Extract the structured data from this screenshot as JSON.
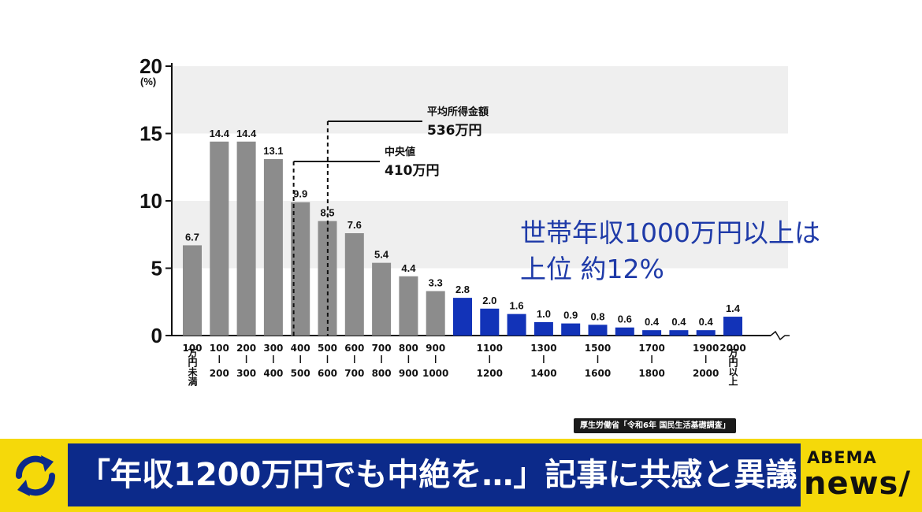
{
  "chart_data": {
    "type": "bar",
    "unit_label": "(%)",
    "yticks": [
      0,
      5,
      10,
      15,
      20
    ],
    "ylim": [
      0,
      20
    ],
    "categories": [
      {
        "top": "100",
        "bottom": "万円未満"
      },
      {
        "top": "100",
        "bottom": "200"
      },
      {
        "top": "200",
        "bottom": "300"
      },
      {
        "top": "300",
        "bottom": "400"
      },
      {
        "top": "400",
        "bottom": "500"
      },
      {
        "top": "500",
        "bottom": "600"
      },
      {
        "top": "600",
        "bottom": "700"
      },
      {
        "top": "700",
        "bottom": "800"
      },
      {
        "top": "800",
        "bottom": "900"
      },
      {
        "top": "900",
        "bottom": "1000"
      },
      {
        "top": "",
        "bottom": ""
      },
      {
        "top": "1100",
        "bottom": "1200"
      },
      {
        "top": "",
        "bottom": ""
      },
      {
        "top": "1300",
        "bottom": "1400"
      },
      {
        "top": "",
        "bottom": ""
      },
      {
        "top": "1500",
        "bottom": "1600"
      },
      {
        "top": "",
        "bottom": ""
      },
      {
        "top": "1700",
        "bottom": "1800"
      },
      {
        "top": "",
        "bottom": ""
      },
      {
        "top": "1900",
        "bottom": "2000"
      },
      {
        "top": "2000",
        "bottom": "万円以上"
      }
    ],
    "values": [
      6.7,
      14.4,
      14.4,
      13.1,
      9.9,
      8.5,
      7.6,
      5.4,
      4.4,
      3.3,
      2.8,
      2.0,
      1.6,
      1.0,
      0.9,
      0.8,
      0.6,
      0.4,
      0.4,
      0.4,
      1.4
    ],
    "value_labels": [
      "6.7",
      "14.4",
      "14.4",
      "13.1",
      "9.9",
      "8.5",
      "7.6",
      "5.4",
      "4.4",
      "3.3",
      "2.8",
      "2.0",
      "1.6",
      "1.0",
      "0.9",
      "0.8",
      "0.6",
      "0.4",
      "0.4",
      "0.4",
      "1.4"
    ],
    "highlight_from_index": 10,
    "colors": {
      "gray": "#8c8c8c",
      "blue": "#1233b8",
      "band": "#efefef"
    },
    "annotations": [
      {
        "label": "平均所得金額",
        "value": "536万円",
        "x": 536
      },
      {
        "label": "中央値",
        "value": "410万円",
        "x": 410
      }
    ]
  },
  "note": {
    "line1": "世帯年収1000万円以上は",
    "line2": "上位 約12%"
  },
  "source": "厚生労働省「令和6年 国民生活基礎調査」",
  "banner": {
    "title": "「年収1200万円でも中絶を…」記事に共感と異議",
    "brand_top": "ABEMA",
    "brand_bottom": "news/",
    "icon": "refresh-icon",
    "colors": {
      "yellow": "#f5d90a",
      "navy": "#0c2a8a"
    }
  }
}
